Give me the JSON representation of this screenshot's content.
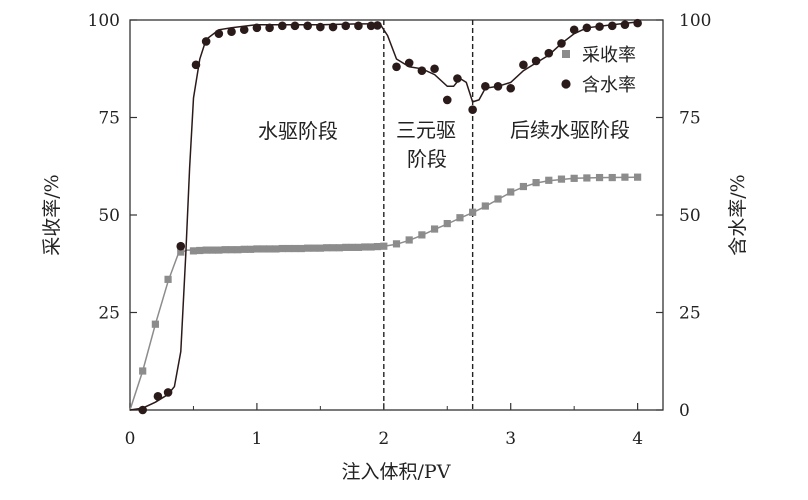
{
  "chart_data": {
    "type": "line",
    "xlabel": "注入体积/PV",
    "ylabel_left": "采收率/%",
    "ylabel_right": "含水率/%",
    "xlim": [
      0,
      4.2
    ],
    "ylim": [
      0,
      100
    ],
    "x_ticks": [
      0,
      1,
      2,
      3,
      4
    ],
    "y_ticks": [
      0,
      25,
      50,
      75,
      100
    ],
    "y_tick_labels_left": [
      "",
      "25",
      "50",
      "75",
      "100"
    ],
    "y_tick_labels_right": [
      "0",
      "25",
      "50",
      "75",
      "100"
    ],
    "x_tick_labels": [
      "0",
      "1",
      "2",
      "3",
      "4"
    ],
    "stage_boundaries": [
      2.0,
      2.7
    ],
    "stage_labels": {
      "water_flood": "水驱阶段",
      "ternary_line1": "三元驱",
      "ternary_line2": "阶段",
      "post_water_flood": "后续水驱阶段"
    },
    "legend": {
      "position": "top-right",
      "recovery_label": "采收率",
      "water_cut_label": "含水率"
    },
    "colors": {
      "recovery": "#8c8c8c",
      "water_cut": "#2b1a1a",
      "boundary": "#222222"
    },
    "series": [
      {
        "name": "采收率",
        "curve": [
          [
            0,
            0
          ],
          [
            0.1,
            10
          ],
          [
            0.2,
            22
          ],
          [
            0.3,
            33
          ],
          [
            0.38,
            40
          ],
          [
            0.45,
            41
          ],
          [
            0.6,
            41
          ],
          [
            1.0,
            41.3
          ],
          [
            1.5,
            41.5
          ],
          [
            1.9,
            41.8
          ],
          [
            2.0,
            42
          ],
          [
            2.1,
            42.5
          ],
          [
            2.2,
            43.5
          ],
          [
            2.3,
            44.8
          ],
          [
            2.4,
            46.3
          ],
          [
            2.5,
            47.7
          ],
          [
            2.6,
            49.2
          ],
          [
            2.7,
            50.6
          ],
          [
            2.8,
            52.2
          ],
          [
            2.9,
            54
          ],
          [
            3.0,
            55.8
          ],
          [
            3.1,
            57.2
          ],
          [
            3.2,
            58.2
          ],
          [
            3.3,
            58.8
          ],
          [
            3.5,
            59.4
          ],
          [
            3.7,
            59.6
          ],
          [
            4.0,
            59.7
          ]
        ],
        "markers": [
          [
            0.1,
            10
          ],
          [
            0.2,
            22
          ],
          [
            0.3,
            33.5
          ],
          [
            0.4,
            40.5
          ],
          [
            0.5,
            40.8
          ],
          [
            0.55,
            40.9
          ],
          [
            0.6,
            41
          ],
          [
            0.65,
            41
          ],
          [
            0.7,
            41
          ],
          [
            0.75,
            41.1
          ],
          [
            0.8,
            41.1
          ],
          [
            0.85,
            41.1
          ],
          [
            0.9,
            41.2
          ],
          [
            0.95,
            41.2
          ],
          [
            1.0,
            41.3
          ],
          [
            1.05,
            41.3
          ],
          [
            1.1,
            41.3
          ],
          [
            1.15,
            41.3
          ],
          [
            1.2,
            41.4
          ],
          [
            1.25,
            41.4
          ],
          [
            1.3,
            41.4
          ],
          [
            1.35,
            41.4
          ],
          [
            1.4,
            41.5
          ],
          [
            1.45,
            41.5
          ],
          [
            1.5,
            41.5
          ],
          [
            1.55,
            41.6
          ],
          [
            1.6,
            41.6
          ],
          [
            1.65,
            41.6
          ],
          [
            1.7,
            41.7
          ],
          [
            1.75,
            41.7
          ],
          [
            1.8,
            41.7
          ],
          [
            1.85,
            41.8
          ],
          [
            1.9,
            41.8
          ],
          [
            1.95,
            41.9
          ],
          [
            2.0,
            42
          ],
          [
            2.1,
            42.6
          ],
          [
            2.2,
            43.6
          ],
          [
            2.3,
            44.9
          ],
          [
            2.4,
            46.4
          ],
          [
            2.5,
            47.8
          ],
          [
            2.6,
            49.3
          ],
          [
            2.7,
            50.7
          ],
          [
            2.8,
            52.3
          ],
          [
            2.9,
            54.1
          ],
          [
            3.0,
            55.9
          ],
          [
            3.1,
            57.3
          ],
          [
            3.2,
            58.3
          ],
          [
            3.3,
            58.9
          ],
          [
            3.4,
            59.2
          ],
          [
            3.5,
            59.4
          ],
          [
            3.6,
            59.5
          ],
          [
            3.7,
            59.6
          ],
          [
            3.8,
            59.6
          ],
          [
            3.9,
            59.7
          ],
          [
            4.0,
            59.7
          ]
        ]
      },
      {
        "name": "含水率",
        "curve": [
          [
            0,
            0
          ],
          [
            0.1,
            0.5
          ],
          [
            0.2,
            2
          ],
          [
            0.3,
            4
          ],
          [
            0.35,
            6
          ],
          [
            0.4,
            15
          ],
          [
            0.44,
            40
          ],
          [
            0.47,
            62
          ],
          [
            0.5,
            80
          ],
          [
            0.55,
            90
          ],
          [
            0.6,
            95
          ],
          [
            0.7,
            97.5
          ],
          [
            0.8,
            98
          ],
          [
            1.0,
            98.8
          ],
          [
            1.5,
            98.8
          ],
          [
            1.8,
            99
          ],
          [
            1.97,
            99
          ],
          [
            2.03,
            96
          ],
          [
            2.1,
            90
          ],
          [
            2.2,
            88
          ],
          [
            2.3,
            87.5
          ],
          [
            2.4,
            86
          ],
          [
            2.5,
            83
          ],
          [
            2.55,
            83
          ],
          [
            2.6,
            85
          ],
          [
            2.65,
            84
          ],
          [
            2.7,
            79
          ],
          [
            2.75,
            79.5
          ],
          [
            2.8,
            82.5
          ],
          [
            2.9,
            83
          ],
          [
            3.0,
            84
          ],
          [
            3.1,
            87
          ],
          [
            3.2,
            89
          ],
          [
            3.3,
            91
          ],
          [
            3.4,
            94
          ],
          [
            3.5,
            96.5
          ],
          [
            3.6,
            98
          ],
          [
            3.8,
            98.8
          ],
          [
            4.0,
            99.5
          ]
        ],
        "markers": [
          [
            0.1,
            0
          ],
          [
            0.22,
            3.5
          ],
          [
            0.3,
            4.5
          ],
          [
            0.4,
            42
          ],
          [
            0.52,
            88.5
          ],
          [
            0.6,
            94.5
          ],
          [
            0.7,
            96.5
          ],
          [
            0.8,
            97
          ],
          [
            0.9,
            97.5
          ],
          [
            1.0,
            98
          ],
          [
            1.1,
            98
          ],
          [
            1.2,
            98.5
          ],
          [
            1.3,
            98.5
          ],
          [
            1.4,
            98.5
          ],
          [
            1.5,
            98.2
          ],
          [
            1.6,
            98.2
          ],
          [
            1.7,
            98.5
          ],
          [
            1.8,
            98.5
          ],
          [
            1.9,
            98.5
          ],
          [
            1.95,
            98.6
          ],
          [
            2.1,
            88
          ],
          [
            2.2,
            89
          ],
          [
            2.3,
            87
          ],
          [
            2.4,
            87.5
          ],
          [
            2.5,
            79.5
          ],
          [
            2.58,
            85
          ],
          [
            2.7,
            77
          ],
          [
            2.8,
            83
          ],
          [
            2.9,
            83
          ],
          [
            3.0,
            82.5
          ],
          [
            3.1,
            88.5
          ],
          [
            3.2,
            89.5
          ],
          [
            3.3,
            91.5
          ],
          [
            3.4,
            94
          ],
          [
            3.5,
            97.5
          ],
          [
            3.6,
            98
          ],
          [
            3.7,
            98.3
          ],
          [
            3.8,
            98.5
          ],
          [
            3.9,
            98.8
          ],
          [
            4.0,
            99.2
          ]
        ]
      }
    ]
  }
}
